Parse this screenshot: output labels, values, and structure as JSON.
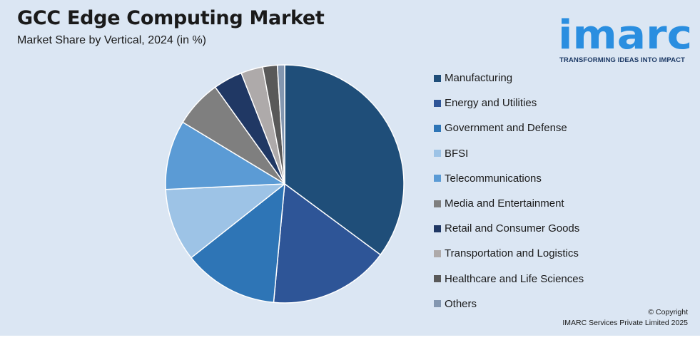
{
  "header": {
    "title": "GCC Edge Computing Market",
    "subtitle": "Market Share by Vertical, 2024 (in %)"
  },
  "brand": {
    "logo_text": "imarc",
    "tagline": "TRANSFORMING IDEAS INTO IMPACT",
    "logo_color": "#2a8ee0"
  },
  "colors": {
    "background": "#dbe6f3"
  },
  "chart_data": {
    "type": "pie",
    "title": "GCC Edge Computing Market",
    "subtitle": "Market Share by Vertical, 2024 (in %)",
    "start_angle_deg": 0,
    "direction": "clockwise",
    "legend_placement": "right",
    "slices": [
      {
        "label": "Manufacturing",
        "value": 35.5,
        "color": "#1f4e79"
      },
      {
        "label": "Energy and Utilities",
        "value": 16.5,
        "color": "#2e5597"
      },
      {
        "label": "Government and Defense",
        "value": 13.0,
        "color": "#2e75b6"
      },
      {
        "label": "BFSI",
        "value": 10.0,
        "color": "#9dc3e6"
      },
      {
        "label": "Telecommunications",
        "value": 9.5,
        "color": "#5b9bd5"
      },
      {
        "label": "Media and Entertainment",
        "value": 6.5,
        "color": "#7f7f7f"
      },
      {
        "label": "Retail and Consumer Goods",
        "value": 4.0,
        "color": "#203864"
      },
      {
        "label": "Transportation and Logistics",
        "value": 3.0,
        "color": "#aeaaaa"
      },
      {
        "label": "Healthcare and Life Sciences",
        "value": 2.0,
        "color": "#595959"
      },
      {
        "label": "Others",
        "value": 1.0,
        "color": "#8497b0"
      }
    ]
  },
  "footer": {
    "copyright_line1": "© Copyright",
    "copyright_line2": "IMARC Services Private Limited 2025"
  }
}
